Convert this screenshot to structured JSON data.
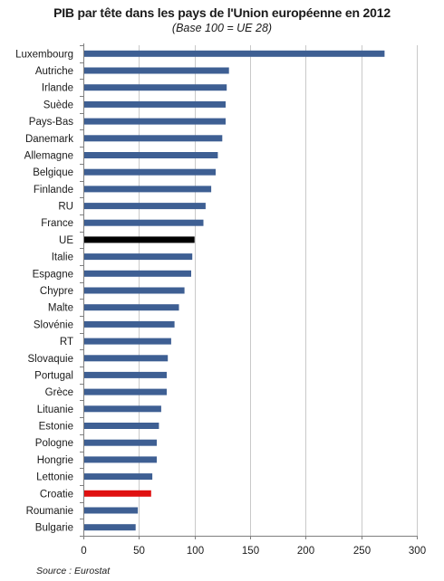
{
  "chart_data": {
    "type": "bar",
    "orientation": "horizontal",
    "title": "PIB par tête dans les pays de l'Union européenne en 2012",
    "subtitle": "(Base 100 = UE 28)",
    "xlim": [
      0,
      300
    ],
    "xticks": [
      0,
      50,
      100,
      150,
      200,
      250,
      300
    ],
    "grid": true,
    "categories": [
      "Luxembourg",
      "Autriche",
      "Irlande",
      "Suède",
      "Pays-Bas",
      "Danemark",
      "Allemagne",
      "Belgique",
      "Finlande",
      "RU",
      "France",
      "UE",
      "Italie",
      "Espagne",
      "Chypre",
      "Malte",
      "Slovénie",
      "RT",
      "Slovaquie",
      "Portugal",
      "Grèce",
      "Lituanie",
      "Estonie",
      "Pologne",
      "Hongrie",
      "Lettonie",
      "Croatie",
      "Roumanie",
      "Bulgarie"
    ],
    "values": [
      271,
      131,
      129,
      128,
      128,
      125,
      121,
      119,
      115,
      110,
      108,
      100,
      98,
      97,
      91,
      86,
      82,
      79,
      76,
      75,
      75,
      70,
      68,
      66,
      66,
      62,
      61,
      49,
      47
    ],
    "colors": {
      "default": "#3e5f93",
      "UE": "#000000",
      "Croatie": "#e01010"
    }
  },
  "source": "Source : Eurostat"
}
